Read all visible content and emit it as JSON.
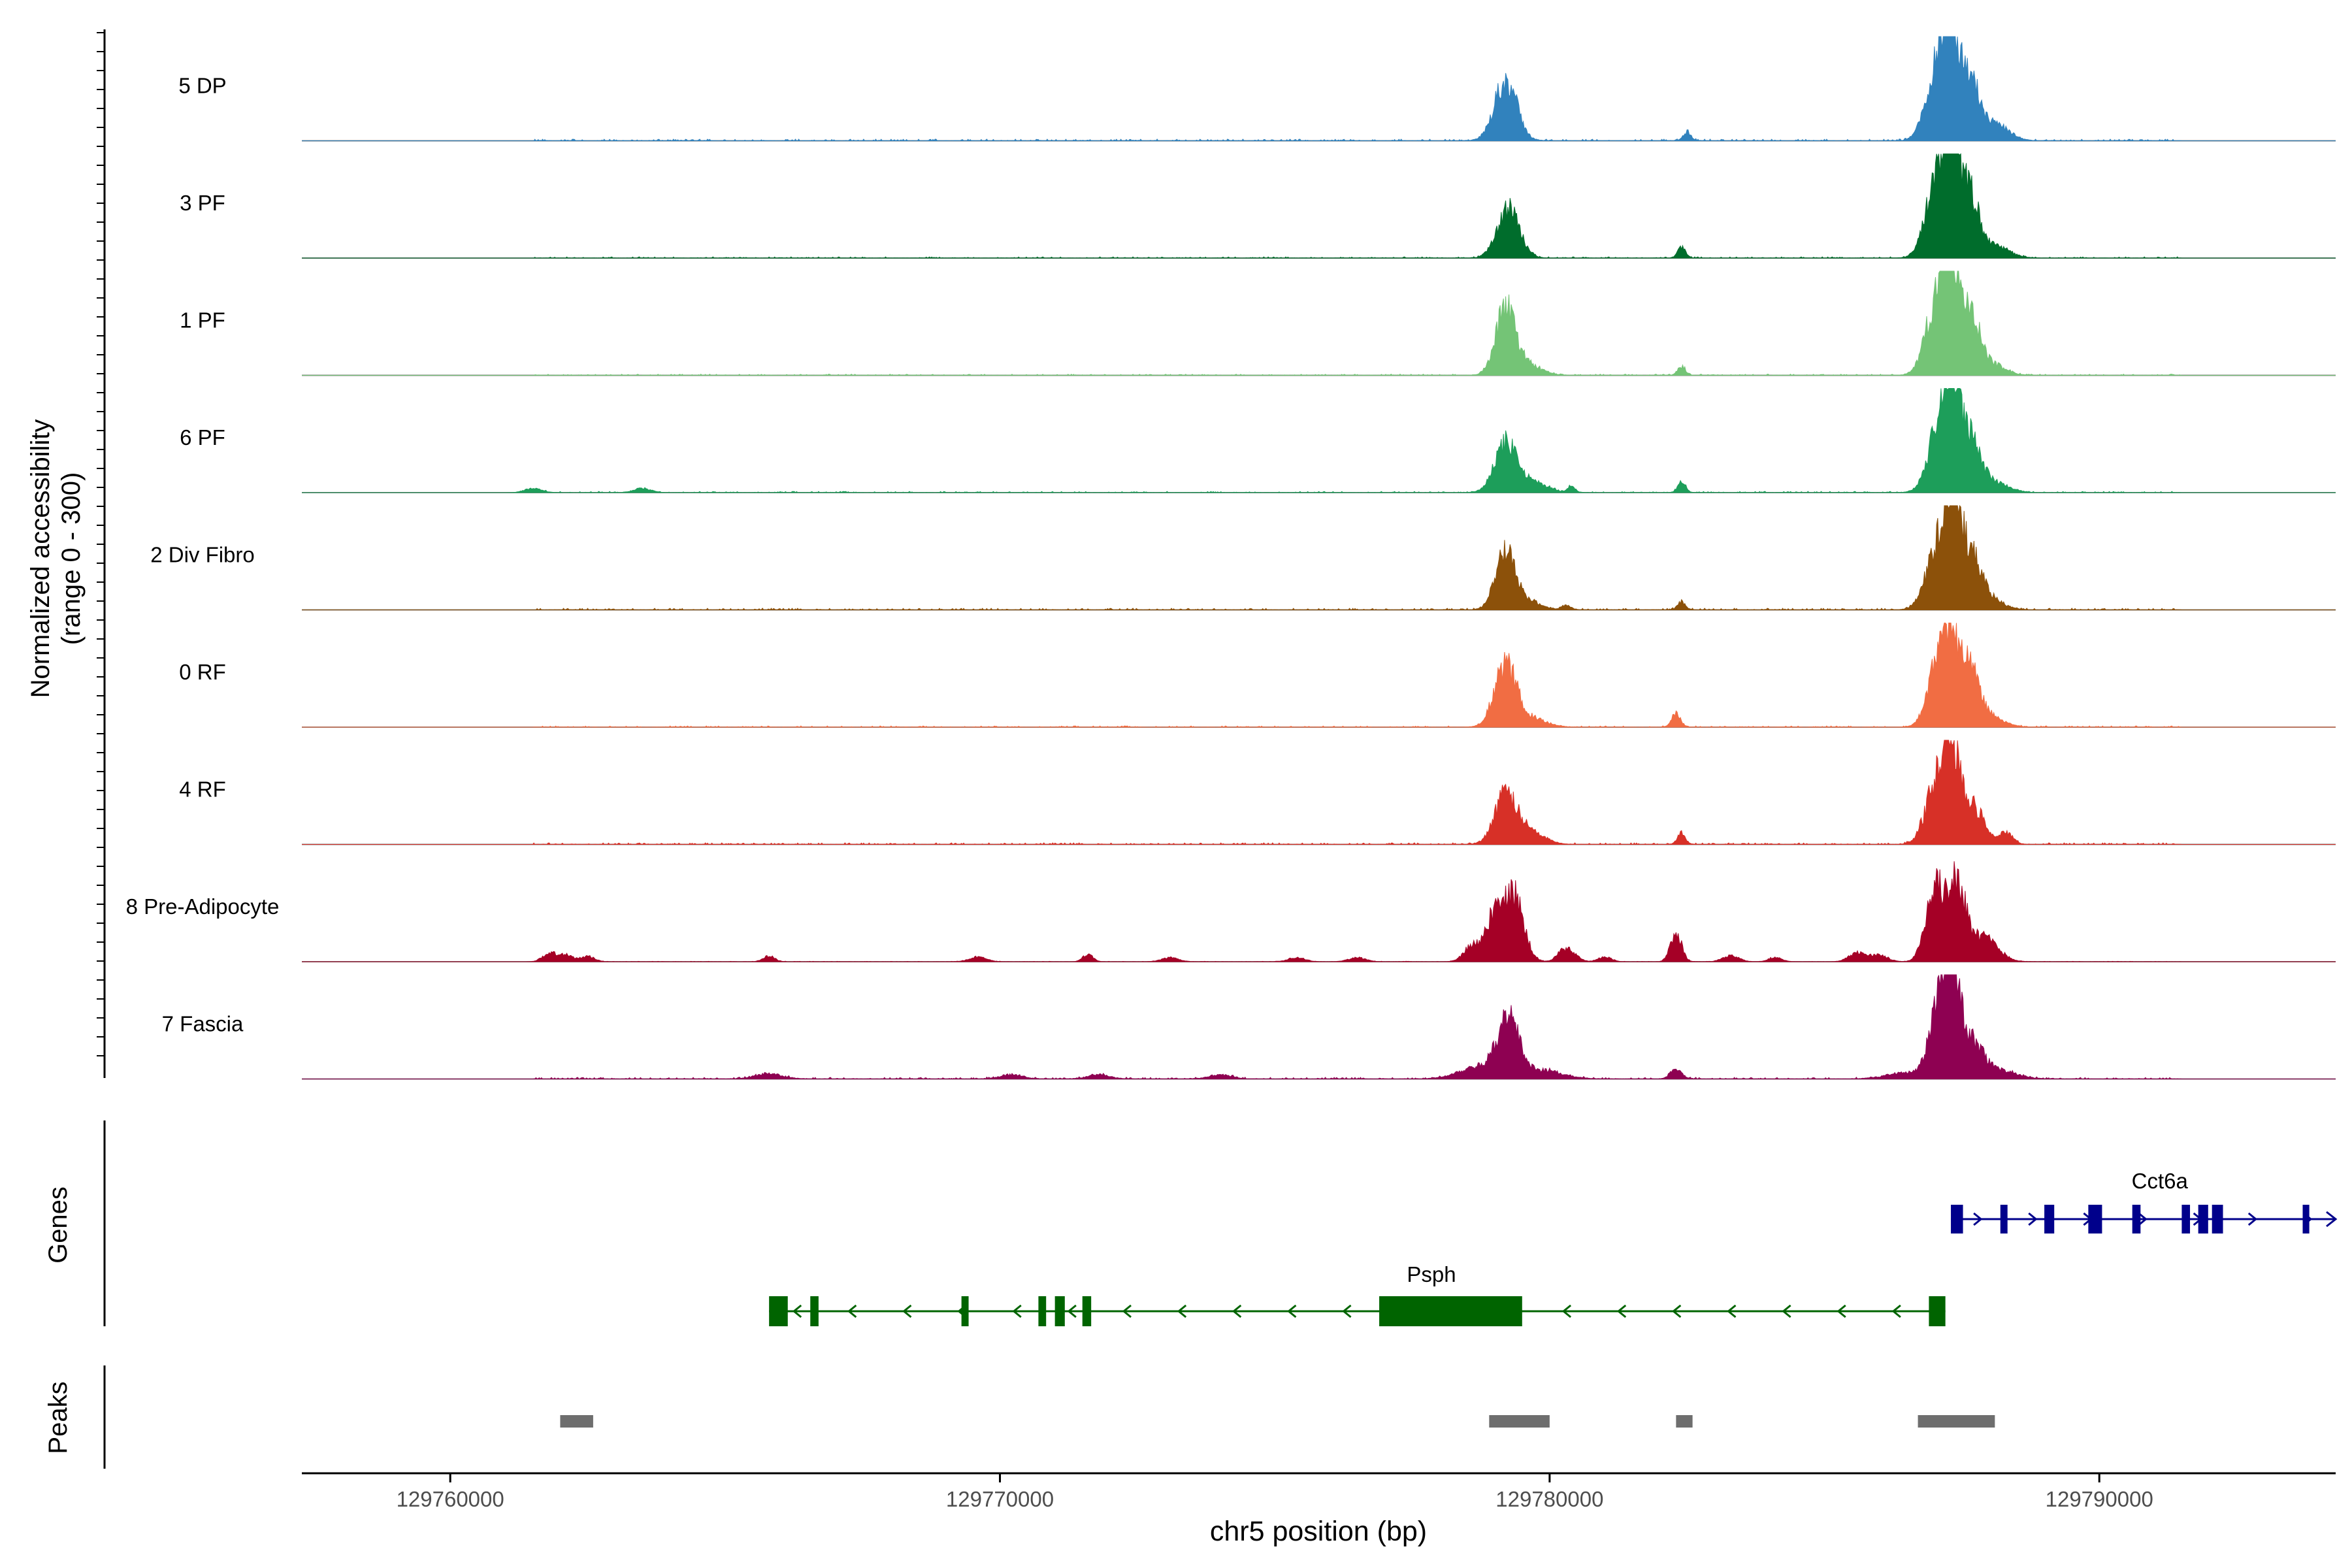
{
  "chart_data": {
    "type": "area",
    "title": "",
    "ylabel_line1": "Normalized accessibility",
    "ylabel_line2": "(range 0 - 300)",
    "xlabel": "chr5 position (bp)",
    "xlim": [
      129757300,
      129794300
    ],
    "ylim": [
      0,
      300
    ],
    "xticks": [
      129760000,
      129770000,
      129780000,
      129790000
    ],
    "xtick_labels": [
      "129760000",
      "129770000",
      "129780000",
      "129790000"
    ],
    "genes_label": "Genes",
    "peaks_label": "Peaks",
    "series": [
      {
        "name": "5 DP",
        "color": "#3182BD",
        "peaks": [
          [
            129779200,
            150,
            200
          ],
          [
            129782500,
            22,
            70
          ],
          [
            129787050,
            170,
            200
          ],
          [
            129787300,
            255,
            150
          ],
          [
            129787650,
            150,
            160
          ],
          [
            129788100,
            40,
            250
          ]
        ],
        "noise": 4,
        "extra": []
      },
      {
        "name": "3 PF",
        "color": "#006D2C",
        "peaks": [
          [
            129779250,
            120,
            200
          ],
          [
            129782400,
            28,
            70
          ],
          [
            129787050,
            190,
            200
          ],
          [
            129787320,
            260,
            140
          ],
          [
            129787650,
            150,
            160
          ],
          [
            129788100,
            30,
            250
          ]
        ],
        "noise": 3,
        "extra": []
      },
      {
        "name": "1 PF",
        "color": "#74C476",
        "peaks": [
          [
            129779200,
            160,
            180
          ],
          [
            129779600,
            25,
            250
          ],
          [
            129782400,
            22,
            70
          ],
          [
            129787050,
            180,
            200
          ],
          [
            129787300,
            260,
            140
          ],
          [
            129787650,
            140,
            160
          ],
          [
            129788000,
            30,
            250
          ]
        ],
        "noise": 3,
        "extra": []
      },
      {
        "name": "6 PF",
        "color": "#1D9E5A",
        "peaks": [
          [
            129779200,
            120,
            200
          ],
          [
            129779700,
            25,
            250
          ],
          [
            129780400,
            15,
            70
          ],
          [
            129782400,
            25,
            70
          ],
          [
            129787100,
            160,
            200
          ],
          [
            129787350,
            230,
            160
          ],
          [
            129787700,
            110,
            160
          ],
          [
            129788100,
            25,
            250
          ]
        ],
        "noise": 3,
        "extra": [
          [
            129761500,
            10,
            150
          ],
          [
            129763500,
            10,
            150
          ]
        ]
      },
      {
        "name": "2 Div Fibro",
        "color": "#8C510A",
        "peaks": [
          [
            129779200,
            140,
            180
          ],
          [
            129779650,
            20,
            200
          ],
          [
            129780300,
            12,
            80
          ],
          [
            129782400,
            20,
            70
          ],
          [
            129787050,
            150,
            200
          ],
          [
            129787350,
            270,
            150
          ],
          [
            129787700,
            110,
            170
          ],
          [
            129788000,
            25,
            250
          ]
        ],
        "noise": 4,
        "extra": []
      },
      {
        "name": "0 RF",
        "color": "#F16D43",
        "peaks": [
          [
            129779200,
            150,
            200
          ],
          [
            129779700,
            20,
            250
          ],
          [
            129782300,
            35,
            80
          ],
          [
            129787050,
            140,
            180
          ],
          [
            129787300,
            195,
            150
          ],
          [
            129787650,
            130,
            170
          ],
          [
            129788000,
            25,
            250
          ]
        ],
        "noise": 3,
        "extra": []
      },
      {
        "name": "4 RF",
        "color": "#D73027",
        "peaks": [
          [
            129779200,
            120,
            200
          ],
          [
            129779650,
            30,
            250
          ],
          [
            129782400,
            30,
            70
          ],
          [
            129787050,
            150,
            200
          ],
          [
            129787350,
            200,
            160
          ],
          [
            129787750,
            80,
            180
          ],
          [
            129788300,
            30,
            120
          ]
        ],
        "noise": 4,
        "extra": []
      },
      {
        "name": "8 Pre-Adipocyte",
        "color": "#A50026",
        "peaks": [
          [
            129779000,
            110,
            150
          ],
          [
            129779350,
            160,
            180
          ],
          [
            129778600,
            40,
            150
          ],
          [
            129780400,
            25,
            120
          ],
          [
            129782300,
            70,
            100
          ],
          [
            129787000,
            180,
            160
          ],
          [
            129787400,
            200,
            160
          ],
          [
            129787900,
            60,
            250
          ]
        ],
        "noise": 1,
        "extra": [
          [
            129761800,
            22,
            120
          ],
          [
            129762100,
            18,
            120
          ],
          [
            129762500,
            14,
            120
          ],
          [
            129765800,
            14,
            100
          ],
          [
            129769600,
            12,
            150
          ],
          [
            129771600,
            18,
            90
          ],
          [
            129773100,
            10,
            150
          ],
          [
            129775400,
            10,
            150
          ],
          [
            129776500,
            10,
            150
          ],
          [
            129780200,
            20,
            100
          ],
          [
            129781000,
            12,
            120
          ],
          [
            129783300,
            14,
            150
          ],
          [
            129784100,
            10,
            120
          ],
          [
            129785600,
            22,
            150
          ],
          [
            129786000,
            16,
            150
          ]
        ]
      },
      {
        "name": "7 Fascia",
        "color": "#8E0152",
        "peaks": [
          [
            129779250,
            140,
            200
          ],
          [
            129778700,
            30,
            350
          ],
          [
            129779900,
            20,
            350
          ],
          [
            129782300,
            25,
            100
          ],
          [
            129787100,
            180,
            180
          ],
          [
            129787350,
            210,
            150
          ],
          [
            129787700,
            80,
            200
          ],
          [
            129786500,
            15,
            350
          ],
          [
            129788200,
            20,
            300
          ]
        ],
        "noise": 4,
        "extra": [
          [
            129765800,
            12,
            250
          ],
          [
            129770200,
            10,
            200
          ],
          [
            129771800,
            10,
            200
          ],
          [
            129774000,
            10,
            200
          ]
        ]
      }
    ],
    "genes": [
      {
        "name": "Cct6a",
        "color": "#00008B",
        "strand": "+",
        "start": 129787300,
        "end": 129794300,
        "label_x": 129791100,
        "row": 0,
        "exons": [
          [
            129787300,
            129787520
          ],
          [
            129788200,
            129788330
          ],
          [
            129789000,
            129789180
          ],
          [
            129789800,
            129790050
          ],
          [
            129790600,
            129790750
          ],
          [
            129791500,
            129791650
          ],
          [
            129791800,
            129791980
          ],
          [
            129792050,
            129792250
          ],
          [
            129793700,
            129793820
          ]
        ]
      },
      {
        "name": "Psph",
        "color": "#006400",
        "strand": "-",
        "start": 129765800,
        "end": 129787200,
        "label_x": 129777850,
        "row": 1,
        "exons": [
          [
            129765800,
            129766140
          ],
          [
            129766550,
            129766700
          ],
          [
            129769300,
            129769430
          ],
          [
            129770700,
            129770840
          ],
          [
            129771000,
            129771180
          ],
          [
            129771500,
            129771660
          ],
          [
            129776900,
            129779500
          ],
          [
            129786900,
            129787200
          ]
        ]
      }
    ],
    "peak_regions": [
      [
        129762000,
        129762600
      ],
      [
        129778900,
        129780000
      ],
      [
        129782300,
        129782600
      ],
      [
        129786700,
        129788100
      ]
    ]
  }
}
